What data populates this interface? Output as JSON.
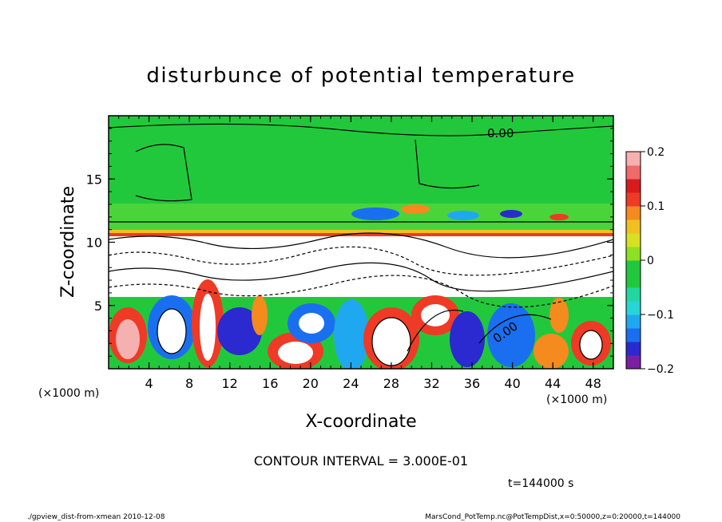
{
  "chart_data": {
    "type": "heatmap",
    "title": "disturbunce of potential temperature",
    "xlabel": "X-coordinate",
    "ylabel": "Z-coordinate",
    "x_unit_left": "(×1000 m)",
    "x_unit_right": "(×1000 m)",
    "xlim": [
      0,
      50
    ],
    "ylim": [
      0,
      20
    ],
    "x_ticks": [
      "4",
      "8",
      "12",
      "16",
      "20",
      "24",
      "28",
      "32",
      "36",
      "40",
      "44",
      "48"
    ],
    "y_ticks": [
      "5",
      "10",
      "15"
    ],
    "contour_labels": [
      "0.00",
      "0.00"
    ],
    "colorbar": {
      "min": -0.2,
      "max": 0.2,
      "tick_labels": [
        "0.2",
        "0.1",
        "0",
        "−0.1",
        "−0.2"
      ],
      "colors": [
        "#7a1fa2",
        "#2a2ad0",
        "#1a6ff0",
        "#1fa8f0",
        "#26d6d6",
        "#22d6a0",
        "#22c83c",
        "#22c83c",
        "#8ee022",
        "#d8e022",
        "#f0c020",
        "#f58a1e",
        "#ef3a26",
        "#d81c1c",
        "#f06a6a",
        "#f5b0b0"
      ]
    },
    "contour_interval": "CONTOUR INTERVAL = 3.000E-01",
    "time": "t=144000 s"
  },
  "footer": {
    "left": "./gpview_dist-from-xmean  2010-12-08",
    "right": "MarsCond_PotTemp.nc@PotTempDist,x=0:50000,z=0:20000,t=144000"
  }
}
